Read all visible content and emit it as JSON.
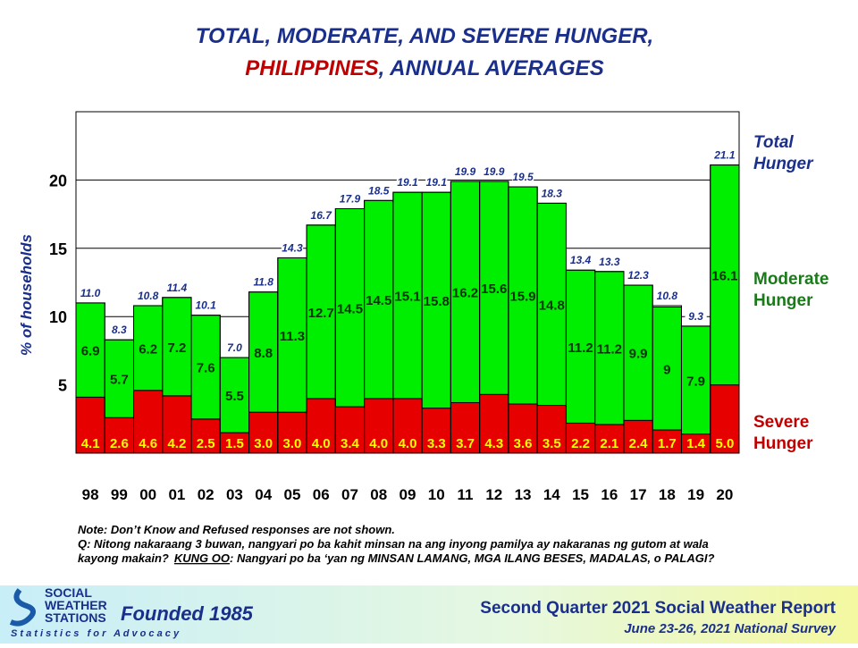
{
  "chart_data": {
    "type": "stacked-bar",
    "title": [
      "TOTAL, MODERATE, AND SEVERE HUNGER,",
      "PHILIPPINES",
      ", ANNUAL AVERAGES"
    ],
    "y_label": "% of households",
    "categories": [
      "98",
      "99",
      "00",
      "01",
      "02",
      "03",
      "04",
      "05",
      "06",
      "07",
      "08",
      "09",
      "10",
      "11",
      "12",
      "13",
      "14",
      "15",
      "16",
      "17",
      "18",
      "19",
      "20"
    ],
    "series": [
      {
        "name": [
          "Severe",
          "Hunger"
        ],
        "color": "#e60000",
        "label_color": "#ffff00",
        "values": [
          4.1,
          2.6,
          4.6,
          4.2,
          2.5,
          1.5,
          3.0,
          3.0,
          4.0,
          3.4,
          4.0,
          4.0,
          3.3,
          3.7,
          4.3,
          3.6,
          3.5,
          2.2,
          2.1,
          2.4,
          1.7,
          1.4,
          5.0
        ],
        "value_labels": [
          "4.1",
          "2.6",
          "4.6",
          "4.2",
          "2.5",
          "1.5",
          "3.0",
          "3.0",
          "4.0",
          "3.4",
          "4.0",
          "4.0",
          "3.3",
          "3.7",
          "4.3",
          "3.6",
          "3.5",
          "2.2",
          "2.1",
          "2.4",
          "1.7",
          "1.4",
          "5.0"
        ]
      },
      {
        "name": [
          "Moderate",
          "Hunger"
        ],
        "color": "#00ee00",
        "label_color": "#003300",
        "values": [
          6.9,
          5.7,
          6.2,
          7.2,
          7.6,
          5.5,
          8.8,
          11.3,
          12.7,
          14.5,
          14.5,
          15.1,
          15.8,
          16.2,
          15.6,
          15.9,
          14.8,
          11.2,
          11.2,
          9.9,
          9.0,
          7.9,
          16.1
        ]
      }
    ],
    "total": {
      "name": [
        "Total",
        "Hunger"
      ],
      "color": "#1a2f8c",
      "values": [
        11.0,
        8.3,
        10.8,
        11.4,
        10.1,
        7.0,
        11.8,
        14.3,
        16.7,
        17.9,
        18.5,
        19.1,
        19.1,
        19.9,
        19.9,
        19.5,
        18.3,
        13.4,
        13.3,
        12.3,
        10.8,
        9.3,
        21.1
      ],
      "value_labels": [
        "11.0",
        "8.3",
        "10.8",
        "11.4",
        "10.1",
        "7.0",
        "11.8",
        "14.3",
        "16.7",
        "17.9",
        "18.5",
        "19.1",
        "19.1",
        "19.9",
        "19.9",
        "19.5",
        "18.3",
        "13.4",
        "13.3",
        "12.3",
        "10.8",
        "9.3",
        "21.1"
      ]
    },
    "ylim": [
      0,
      25
    ],
    "yticks": [
      5,
      10,
      15,
      20
    ],
    "grid": true
  },
  "notes": [
    "Note: Don’t Know and Refused responses are not shown.",
    "Q: Nitong nakaraang 3 buwan, nangyari po ba kahit minsan na ang inyong pamilya ay nakaranas ng gutom at wala",
    "kayong makain?",
    "KUNG OO",
    ": Nangyari po ba ‘yan ng MINSAN LAMANG, MGA ILANG BESES, MADALAS, o PALAGI?"
  ],
  "footer": {
    "logo": [
      "SOCIAL",
      "WEATHER",
      "STATIONS"
    ],
    "founded": "Founded 1985",
    "tagline": "S t a t i s t i c s   f o r   A d v o c a c y",
    "report": "Second Quarter 2021 Social Weather Report",
    "survey": "June 23-26, 2021 National Survey"
  }
}
